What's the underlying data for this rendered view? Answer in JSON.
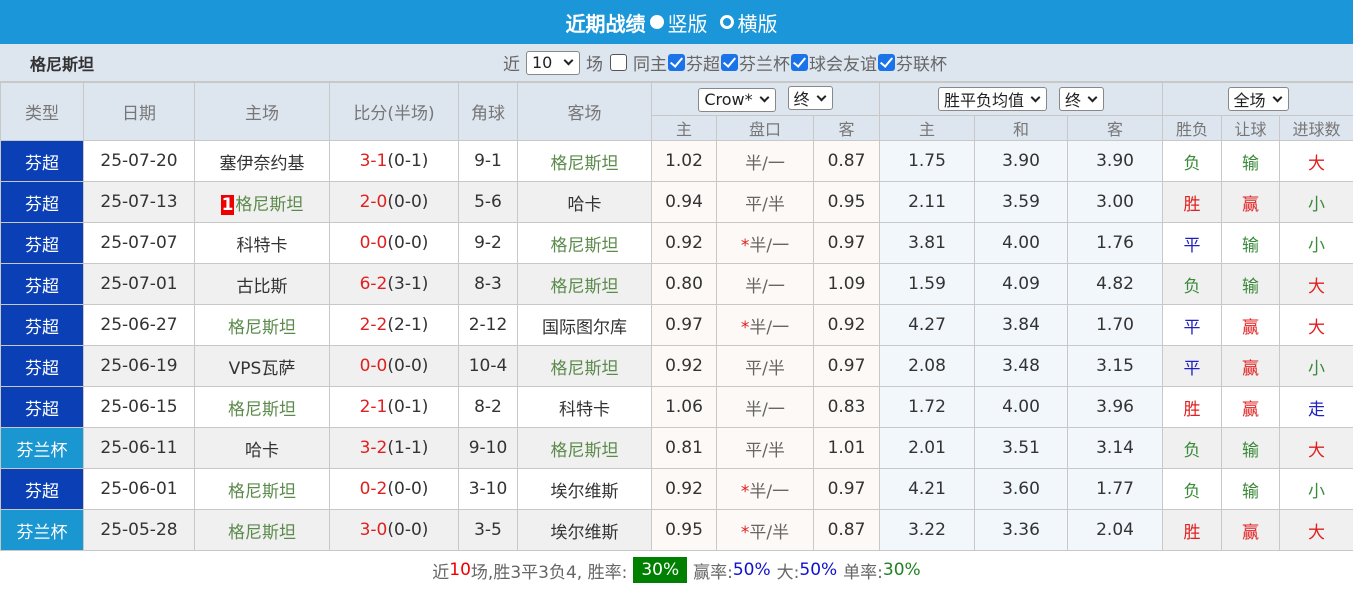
{
  "header": {
    "title": "近期战绩",
    "view_vertical": "竖版",
    "view_horizontal": "横版"
  },
  "filter": {
    "team_name": "格尼斯坦",
    "near_label": "近",
    "count": "10",
    "games_label": "场",
    "checkboxes": [
      {
        "label": "同主",
        "checked": false
      },
      {
        "label": "芬超",
        "checked": true
      },
      {
        "label": "芬兰杯",
        "checked": true
      },
      {
        "label": "球会友谊",
        "checked": true
      },
      {
        "label": "芬联杯",
        "checked": true
      }
    ]
  },
  "columns": {
    "type": "类型",
    "date": "日期",
    "home": "主场",
    "score": "比分(半场)",
    "corner": "角球",
    "away": "客场",
    "ah_company": "Crow*",
    "ah_time": "终",
    "eu_type": "胜平负均值",
    "eu_time": "终",
    "period": "全场",
    "ah_home": "主",
    "ah_line": "盘口",
    "ah_away": "客",
    "eu_home": "主",
    "eu_draw": "和",
    "eu_away": "客",
    "wdl": "胜负",
    "handicap": "让球",
    "goals": "进球数"
  },
  "colors": {
    "league": "#0a3fb5",
    "cup": "#1a96d0",
    "win": "#e02020",
    "draw": "#2020c0",
    "loss": "#3a8a3a",
    "team": "#5b8a4b"
  },
  "rows": [
    {
      "type": "芬超",
      "date": "25-07-20",
      "home": "塞伊奈约基",
      "ft": "3-1",
      "ht": "(0-1)",
      "corner": "9-1",
      "away": "格尼斯坦",
      "ah_h": "1.02",
      "star": false,
      "line": "半/一",
      "ah_a": "0.87",
      "eu_h": "1.75",
      "eu_d": "3.90",
      "eu_a": "3.90",
      "wdl": "负",
      "hc": "输",
      "goals": "大"
    },
    {
      "type": "芬超",
      "date": "25-07-13",
      "badge": "1",
      "home": "格尼斯坦",
      "ft": "2-0",
      "ht": "(0-0)",
      "corner": "5-6",
      "away": "哈卡",
      "ah_h": "0.94",
      "star": false,
      "line": "平/半",
      "ah_a": "0.95",
      "eu_h": "2.11",
      "eu_d": "3.59",
      "eu_a": "3.00",
      "wdl": "胜",
      "hc": "赢",
      "goals": "小"
    },
    {
      "type": "芬超",
      "date": "25-07-07",
      "home": "科特卡",
      "ft": "0-0",
      "ht": "(0-0)",
      "corner": "9-2",
      "away": "格尼斯坦",
      "ah_h": "0.92",
      "star": true,
      "line": "半/一",
      "ah_a": "0.97",
      "eu_h": "3.81",
      "eu_d": "4.00",
      "eu_a": "1.76",
      "wdl": "平",
      "hc": "输",
      "goals": "小"
    },
    {
      "type": "芬超",
      "date": "25-07-01",
      "home": "古比斯",
      "ft": "6-2",
      "ht": "(3-1)",
      "corner": "8-3",
      "away": "格尼斯坦",
      "ah_h": "0.80",
      "star": false,
      "line": "半/一",
      "ah_a": "1.09",
      "eu_h": "1.59",
      "eu_d": "4.09",
      "eu_a": "4.82",
      "wdl": "负",
      "hc": "输",
      "goals": "大"
    },
    {
      "type": "芬超",
      "date": "25-06-27",
      "home": "格尼斯坦",
      "ft": "2-2",
      "ht": "(2-1)",
      "corner": "2-12",
      "away": "国际图尔库",
      "ah_h": "0.97",
      "star": true,
      "line": "半/一",
      "ah_a": "0.92",
      "eu_h": "4.27",
      "eu_d": "3.84",
      "eu_a": "1.70",
      "wdl": "平",
      "hc": "赢",
      "goals": "大"
    },
    {
      "type": "芬超",
      "date": "25-06-19",
      "home": "VPS瓦萨",
      "ft": "0-0",
      "ht": "(0-0)",
      "corner": "10-4",
      "away": "格尼斯坦",
      "ah_h": "0.92",
      "star": false,
      "line": "平/半",
      "ah_a": "0.97",
      "eu_h": "2.08",
      "eu_d": "3.48",
      "eu_a": "3.15",
      "wdl": "平",
      "hc": "赢",
      "goals": "小"
    },
    {
      "type": "芬超",
      "date": "25-06-15",
      "home": "格尼斯坦",
      "ft": "2-1",
      "ht": "(0-1)",
      "corner": "8-2",
      "away": "科特卡",
      "ah_h": "1.06",
      "star": false,
      "line": "半/一",
      "ah_a": "0.83",
      "eu_h": "1.72",
      "eu_d": "4.00",
      "eu_a": "3.96",
      "wdl": "胜",
      "hc": "赢",
      "goals": "走"
    },
    {
      "type": "芬兰杯",
      "date": "25-06-11",
      "home": "哈卡",
      "ft": "3-2",
      "ht": "(1-1)",
      "corner": "9-10",
      "away": "格尼斯坦",
      "ah_h": "0.81",
      "star": false,
      "line": "平/半",
      "ah_a": "1.01",
      "eu_h": "2.01",
      "eu_d": "3.51",
      "eu_a": "3.14",
      "wdl": "负",
      "hc": "输",
      "goals": "大"
    },
    {
      "type": "芬超",
      "date": "25-06-01",
      "home": "格尼斯坦",
      "ft": "0-2",
      "ht": "(0-0)",
      "corner": "3-10",
      "away": "埃尔维斯",
      "ah_h": "0.92",
      "star": true,
      "line": "半/一",
      "ah_a": "0.97",
      "eu_h": "4.21",
      "eu_d": "3.60",
      "eu_a": "1.77",
      "wdl": "负",
      "hc": "输",
      "goals": "小"
    },
    {
      "type": "芬兰杯",
      "date": "25-05-28",
      "home": "格尼斯坦",
      "ft": "3-0",
      "ht": "(0-0)",
      "corner": "3-5",
      "away": "埃尔维斯",
      "ah_h": "0.95",
      "star": true,
      "line": "平/半",
      "ah_a": "0.87",
      "eu_h": "3.22",
      "eu_d": "3.36",
      "eu_a": "2.04",
      "wdl": "胜",
      "hc": "赢",
      "goals": "大"
    }
  ],
  "summary": {
    "p1": "近",
    "n": "10",
    "p2": "场,胜3平3负4, 胜率:",
    "win_rate": "30%",
    "p3": "赢率:",
    "cover_rate": "50%",
    "p4": "大:",
    "over_rate": "50%",
    "p5": "单率:",
    "odd_rate": "30%"
  }
}
